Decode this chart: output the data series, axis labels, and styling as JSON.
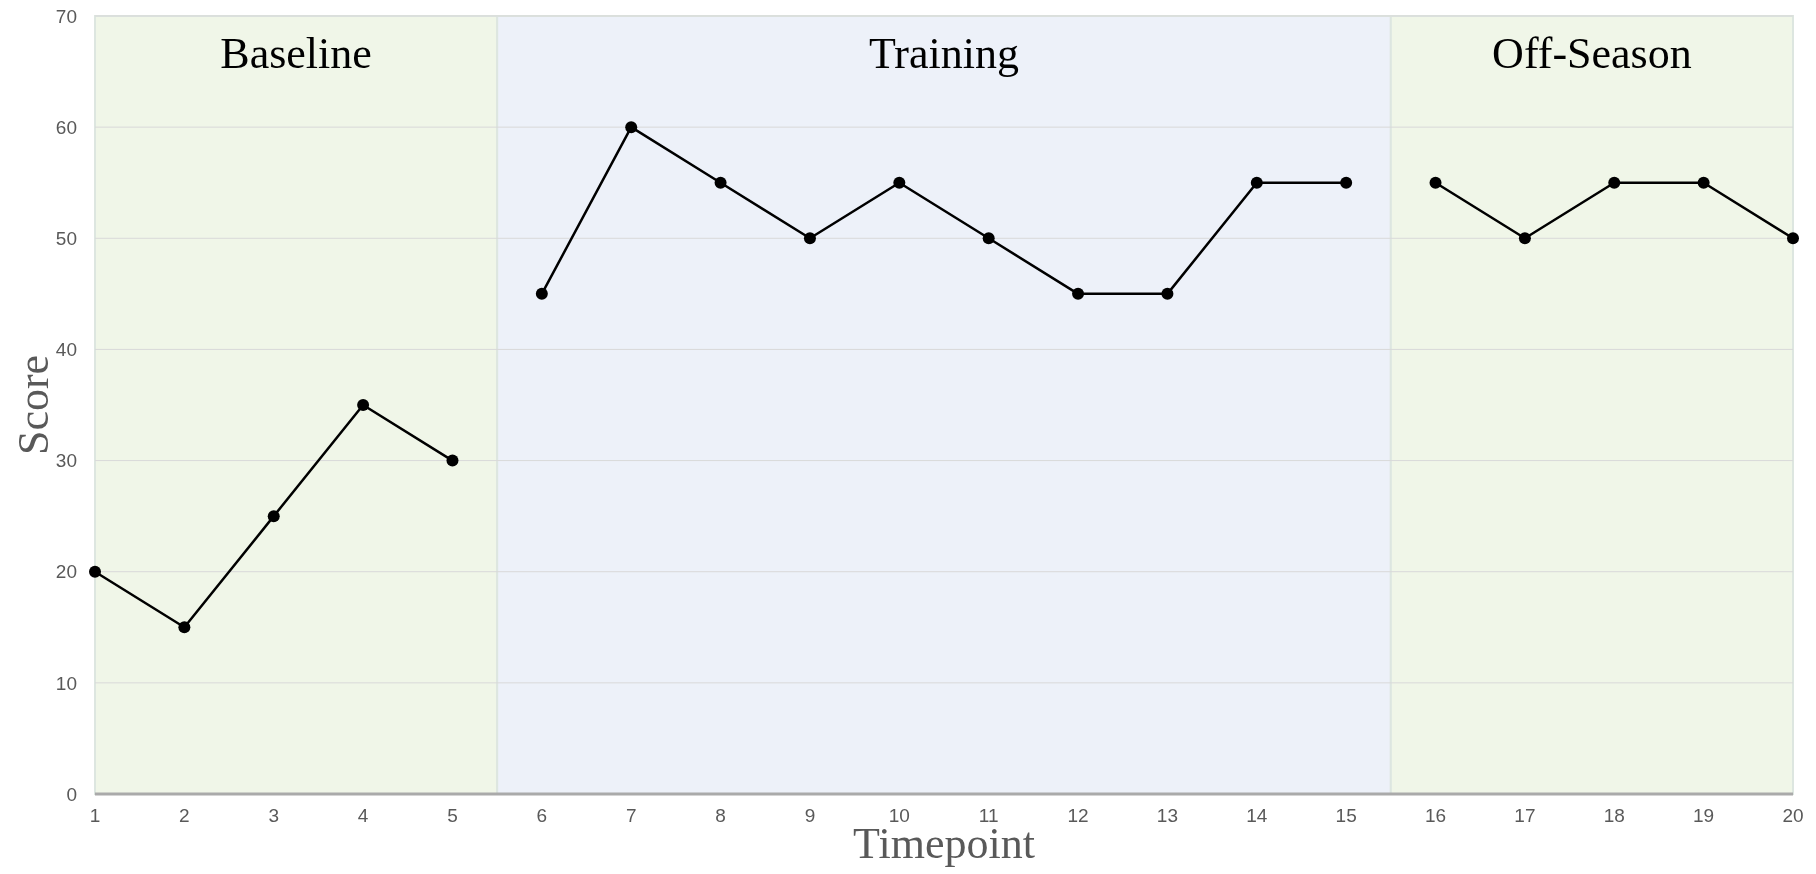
{
  "chart_data": {
    "type": "line",
    "xlabel": "Timepoint",
    "ylabel": "Score",
    "series": [
      {
        "color": "#000000",
        "x": [
          1,
          2,
          3,
          4,
          5
        ],
        "values": [
          20,
          15,
          25,
          35,
          30
        ]
      },
      {
        "color": "#000000",
        "x": [
          6,
          7,
          8,
          9,
          10,
          11,
          12,
          13,
          14,
          15
        ],
        "values": [
          45,
          60,
          55,
          50,
          55,
          50,
          45,
          45,
          55,
          55
        ]
      },
      {
        "color": "#000000",
        "x": [
          16,
          17,
          18,
          19,
          20
        ],
        "values": [
          55,
          50,
          55,
          55,
          50
        ]
      }
    ],
    "xlim": [
      1,
      20
    ],
    "xticks": [
      1,
      2,
      3,
      4,
      5,
      6,
      7,
      8,
      9,
      10,
      11,
      12,
      13,
      14,
      15,
      16,
      17,
      18,
      19,
      20
    ],
    "ylim": [
      0,
      70
    ],
    "yticks": [
      0,
      10,
      20,
      30,
      40,
      50,
      60,
      70
    ],
    "grid": "y",
    "marker": "circle",
    "line_style": "solid",
    "bands": [
      {
        "axis": "x",
        "from": 1,
        "to": 5.5,
        "label": "Baseline",
        "color": "#f0f6e8"
      },
      {
        "axis": "x",
        "from": 5.5,
        "to": 15.5,
        "label": "Training",
        "color": "#edf1f9"
      },
      {
        "axis": "x",
        "from": 15.5,
        "to": 20,
        "label": "Off-Season",
        "color": "#f0f6e8"
      }
    ]
  }
}
